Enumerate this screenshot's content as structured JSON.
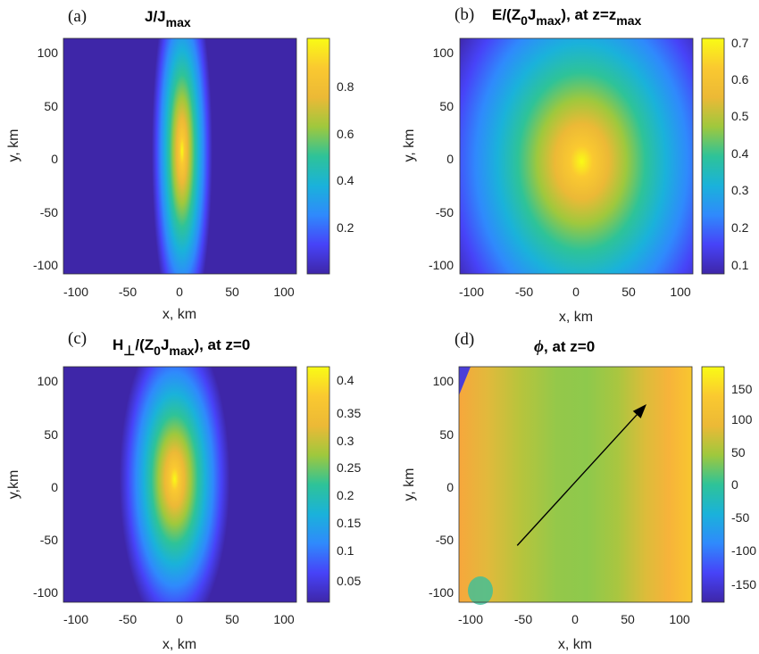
{
  "chart_data": [
    {
      "type": "heatmap",
      "panel_label": "(a)",
      "title": {
        "main": "J/J",
        "sub": "max"
      },
      "xlabel": "x, km",
      "ylabel": "y, km",
      "xlim": [
        -110,
        110
      ],
      "ylim": [
        -110,
        110
      ],
      "xticks": [
        "-100",
        "-50",
        "0",
        "50",
        "100"
      ],
      "yticks": [
        "100",
        "50",
        "0",
        "-50",
        "-100"
      ],
      "colorbar": {
        "range": [
          0.0,
          1.0
        ],
        "ticks": [
          "0.8",
          "0.6",
          "0.4",
          "0.2"
        ]
      },
      "field": {
        "shape": "ellipse",
        "center": [
          2,
          5
        ],
        "sigma_x": 11,
        "sigma_y": 65,
        "background": 0.02
      }
    },
    {
      "type": "heatmap",
      "panel_label": "(b)",
      "title": {
        "main": "E/(Z",
        "sub1": "0",
        "mid": "J",
        "sub2": "max",
        "tail": "), at z=z",
        "sub3": "max"
      },
      "xlabel": "x, km",
      "ylabel": "y, km",
      "xlim": [
        -110,
        110
      ],
      "ylim": [
        -110,
        110
      ],
      "xticks": [
        "-100",
        "-50",
        "0",
        "50",
        "100"
      ],
      "yticks": [
        "100",
        "50",
        "0",
        "-50",
        "-100"
      ],
      "colorbar": {
        "range": [
          0.08,
          0.72
        ],
        "ticks": [
          "0.7",
          "0.6",
          "0.5",
          "0.4",
          "0.3",
          "0.2",
          "0.1"
        ]
      },
      "field": {
        "shape": "ellipse",
        "center": [
          5,
          -5
        ],
        "sigma_x": 55,
        "sigma_y": 80,
        "background": 0.1,
        "peak": 0.71
      }
    },
    {
      "type": "heatmap",
      "panel_label": "(c)",
      "title": {
        "main": "H",
        "sub": "⊥",
        "tail": "/(Z",
        "sub1": "0",
        "mid": "J",
        "sub2": "max",
        "end": "), at z=0"
      },
      "xlabel": "x, km",
      "ylabel": "y,km",
      "xlim": [
        -110,
        110
      ],
      "ylim": [
        -110,
        110
      ],
      "xticks": [
        "-100",
        "-50",
        "0",
        "50",
        "100"
      ],
      "yticks": [
        "100",
        "50",
        "0",
        "-50",
        "-100"
      ],
      "colorbar": {
        "range": [
          0.01,
          0.43
        ],
        "ticks": [
          "0.4",
          "0.35",
          "0.3",
          "0.25",
          "0.2",
          "0.15",
          "0.1",
          "0.05"
        ]
      },
      "field": {
        "shape": "ellipse",
        "center": [
          -5,
          5
        ],
        "sigma_x": 20,
        "sigma_y": 55,
        "background": 0.03,
        "peak": 0.42
      }
    },
    {
      "type": "heatmap",
      "panel_label": "(d)",
      "title": {
        "symbol": "ϕ",
        "tail": ", at z=0"
      },
      "xlabel": "x, km",
      "ylabel": "y, km",
      "xlim": [
        -110,
        110
      ],
      "ylim": [
        -110,
        110
      ],
      "xticks": [
        "-100",
        "-50",
        "0",
        "50",
        "100"
      ],
      "yticks": [
        "100",
        "50",
        "0",
        "-50",
        "-100"
      ],
      "colorbar": {
        "range": [
          -180,
          180
        ],
        "ticks": [
          "150",
          "100",
          "50",
          "0",
          "-50",
          "-100",
          "-150"
        ]
      },
      "field": {
        "shape": "phase",
        "center_value": 55,
        "edge_value": 120
      },
      "arrow": {
        "from": [
          -55,
          -57
        ],
        "to": [
          67,
          75
        ]
      }
    }
  ],
  "colormap": [
    "#3e26a8",
    "#4743f8",
    "#2f8afc",
    "#1ab2da",
    "#2ec398",
    "#9fc83d",
    "#ecb936",
    "#fac930",
    "#f9fb15"
  ]
}
